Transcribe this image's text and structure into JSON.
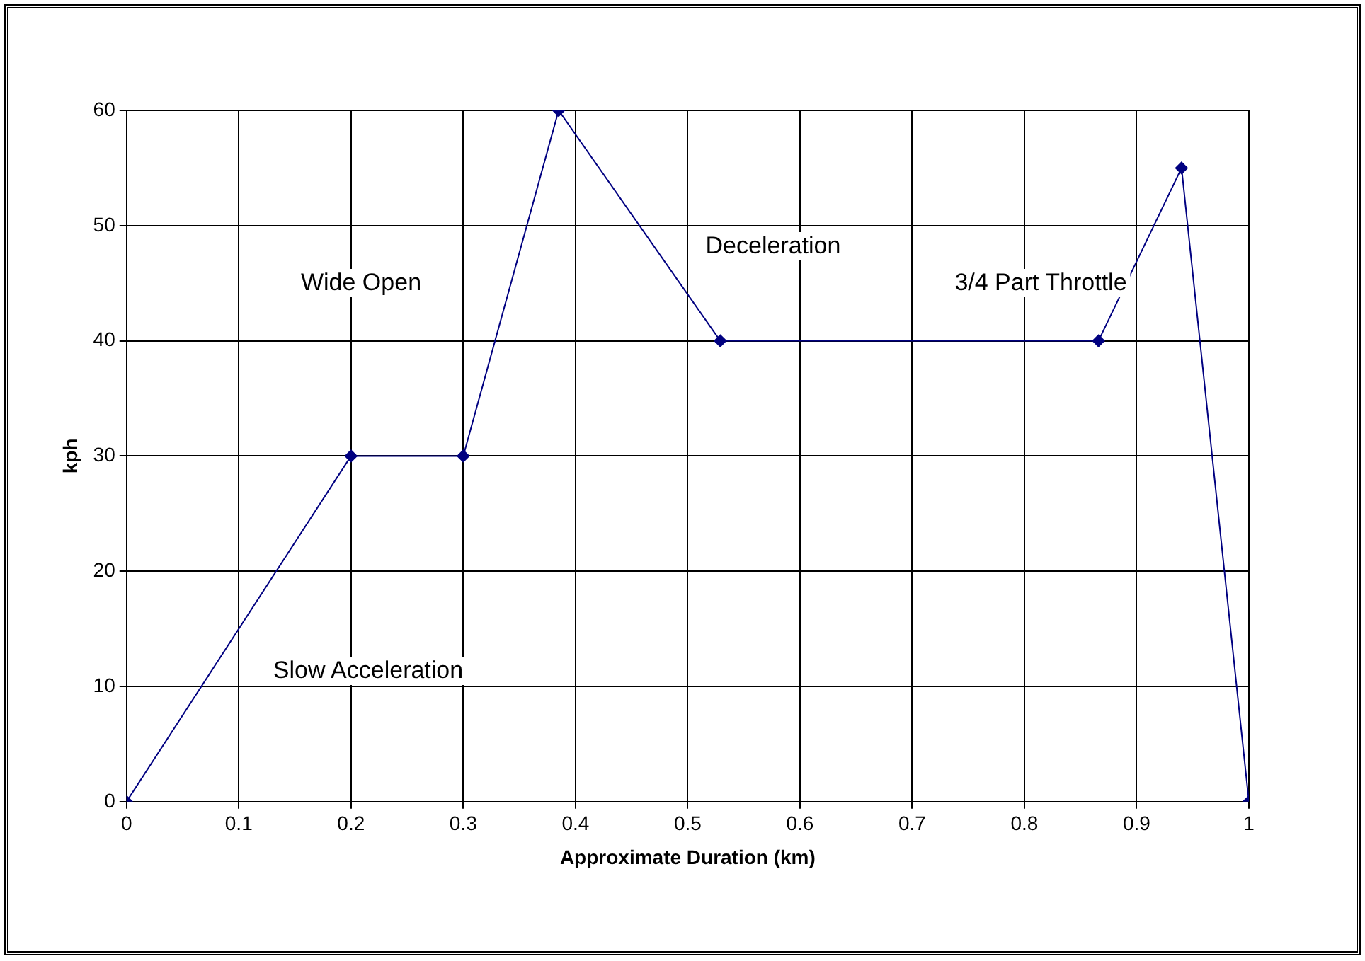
{
  "chart_data": {
    "type": "line",
    "xlabel": "Approximate Duration (km)",
    "ylabel": "kph",
    "x": [
      0,
      0.2,
      0.3,
      0.385,
      0.529,
      0.866,
      0.94,
      1
    ],
    "series": [
      {
        "color": "#000080",
        "values": [
          0,
          30,
          30,
          60,
          40,
          40,
          55,
          0
        ]
      }
    ],
    "xlim": [
      0,
      1
    ],
    "xticks": [
      0,
      0.1,
      0.2,
      0.3,
      0.4,
      0.5,
      0.6,
      0.7,
      0.8,
      0.9,
      1
    ],
    "ylim": [
      0,
      60
    ],
    "yticks": [
      0,
      10,
      20,
      30,
      40,
      50,
      60
    ],
    "grid": true,
    "legend": false,
    "marker": "diamond",
    "line_style": "solid",
    "annotations": [
      "Wide Open",
      "Deceleration",
      "3/4 Part Throttle",
      "Slow Acceleration"
    ]
  }
}
